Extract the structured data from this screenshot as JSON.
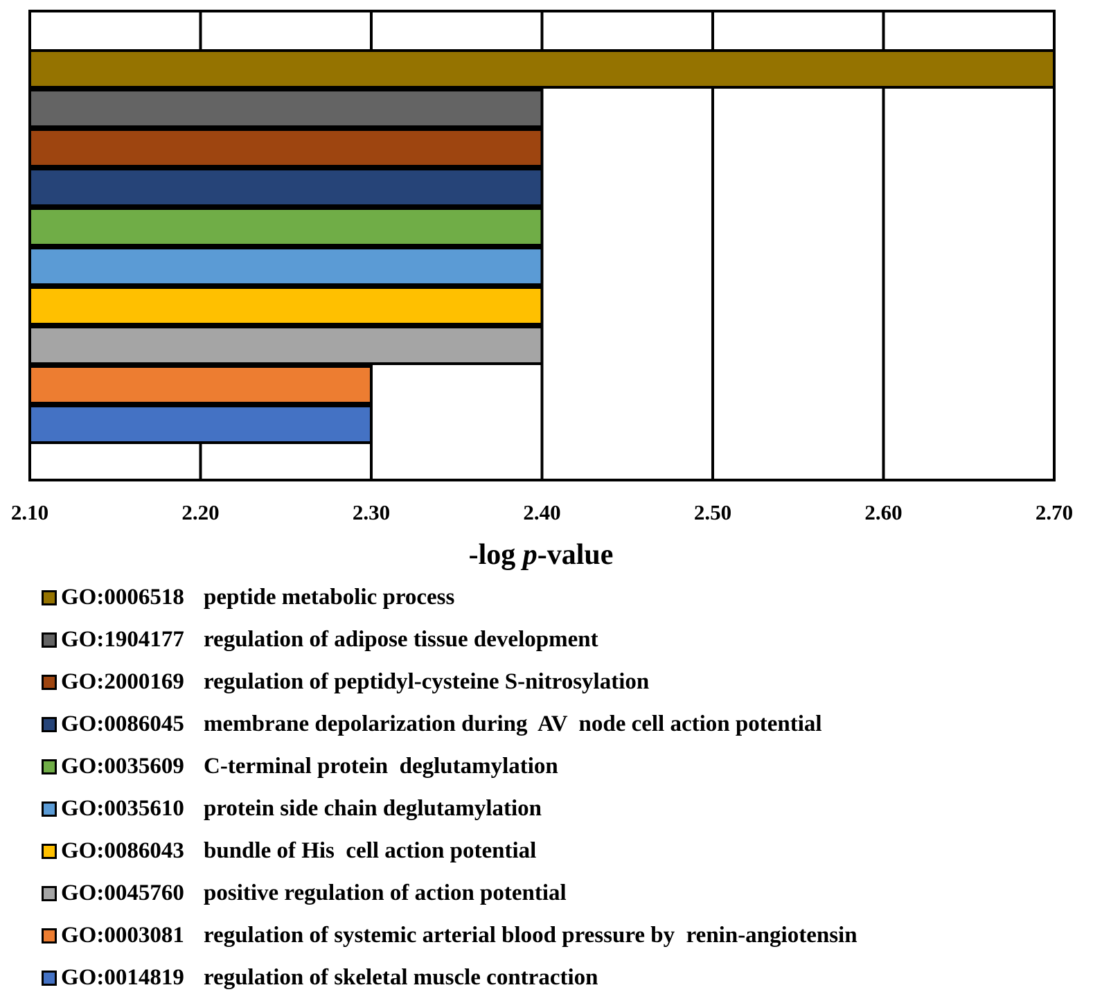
{
  "chart_data": {
    "type": "bar",
    "orientation": "horizontal",
    "xlabel_prefix": "-log ",
    "xlabel_italic": "p",
    "xlabel_suffix": "-value",
    "xlim": [
      2.1,
      2.7
    ],
    "ticks": [
      "2.10",
      "2.20",
      "2.30",
      "2.40",
      "2.50",
      "2.60",
      "2.70"
    ],
    "grid": "vertical",
    "legend_position": "bottom",
    "series": [
      {
        "id": "GO:0006518",
        "label": "peptide metabolic process",
        "value": 2.7,
        "color": "#957300"
      },
      {
        "id": "GO:1904177",
        "label": "regulation of adipose tissue development",
        "value": 2.4,
        "color": "#646464"
      },
      {
        "id": "GO:2000169",
        "label": "regulation of peptidyl-cysteine S-nitrosylation",
        "value": 2.4,
        "color": "#9E4510"
      },
      {
        "id": "GO:0086045",
        "label": "membrane depolarization during  AV  node cell action potential",
        "value": 2.4,
        "color": "#264478"
      },
      {
        "id": "GO:0035609",
        "label": "C-terminal protein  deglutamylation",
        "value": 2.4,
        "color": "#70AD47"
      },
      {
        "id": "GO:0035610",
        "label": "protein side chain deglutamylation",
        "value": 2.4,
        "color": "#5B9BD5"
      },
      {
        "id": "GO:0086043",
        "label": "bundle of His  cell action potential",
        "value": 2.4,
        "color": "#FFC000"
      },
      {
        "id": "GO:0045760",
        "label": "positive regulation of action potential",
        "value": 2.4,
        "color": "#A5A5A5"
      },
      {
        "id": "GO:0003081",
        "label": "regulation of systemic arterial blood pressure by  renin-angiotensin",
        "value": 2.3,
        "color": "#ED7D31"
      },
      {
        "id": "GO:0014819",
        "label": "regulation of skeletal muscle contraction",
        "value": 2.3,
        "color": "#4472C4"
      }
    ]
  }
}
